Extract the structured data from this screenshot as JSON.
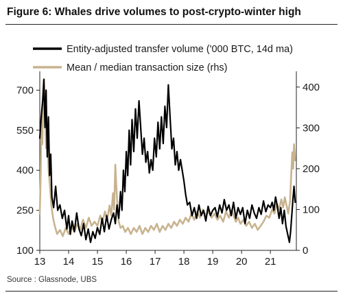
{
  "page": {
    "title": "Figure 6: Whales drive volumes to post-crypto-winter high",
    "source": "Source : Glassnode, UBS"
  },
  "chart_data": {
    "type": "line",
    "title": "Figure 6: Whales drive volumes to post-crypto-winter high",
    "x_range": [
      2013.0,
      2021.9
    ],
    "x_ticks": [
      "13",
      "14",
      "15",
      "16",
      "17",
      "18",
      "19",
      "20",
      "21"
    ],
    "x_tick_values": [
      2013,
      2014,
      2015,
      2016,
      2017,
      2018,
      2019,
      2020,
      2021
    ],
    "y_left": {
      "range": [
        100,
        750
      ],
      "ticks": [
        100,
        250,
        400,
        550,
        700
      ]
    },
    "y_right": {
      "range": [
        0,
        425
      ],
      "ticks": [
        0,
        100,
        200,
        300,
        400
      ],
      "label": "rhs"
    },
    "grid": false,
    "legend_position": "top",
    "series": [
      {
        "name": "Entity-adjusted transfer volume ('000 BTC, 14d ma)",
        "axis": "left",
        "color": "#000000",
        "points": [
          [
            2013.0,
            520
          ],
          [
            2013.05,
            600
          ],
          [
            2013.1,
            660
          ],
          [
            2013.14,
            740
          ],
          [
            2013.18,
            560
          ],
          [
            2013.22,
            700
          ],
          [
            2013.26,
            450
          ],
          [
            2013.3,
            600
          ],
          [
            2013.34,
            380
          ],
          [
            2013.38,
            460
          ],
          [
            2013.42,
            300
          ],
          [
            2013.48,
            260
          ],
          [
            2013.55,
            340
          ],
          [
            2013.62,
            250
          ],
          [
            2013.7,
            270
          ],
          [
            2013.78,
            220
          ],
          [
            2013.86,
            250
          ],
          [
            2013.94,
            180
          ],
          [
            2014.0,
            230
          ],
          [
            2014.06,
            160
          ],
          [
            2014.12,
            210
          ],
          [
            2014.2,
            170
          ],
          [
            2014.28,
            240
          ],
          [
            2014.36,
            180
          ],
          [
            2014.44,
            155
          ],
          [
            2014.52,
            200
          ],
          [
            2014.6,
            140
          ],
          [
            2014.68,
            180
          ],
          [
            2014.76,
            130
          ],
          [
            2014.84,
            170
          ],
          [
            2014.92,
            145
          ],
          [
            2015.0,
            185
          ],
          [
            2015.08,
            160
          ],
          [
            2015.16,
            220
          ],
          [
            2015.24,
            170
          ],
          [
            2015.32,
            230
          ],
          [
            2015.4,
            180
          ],
          [
            2015.48,
            215
          ],
          [
            2015.56,
            240
          ],
          [
            2015.62,
            200
          ],
          [
            2015.68,
            270
          ],
          [
            2015.74,
            220
          ],
          [
            2015.8,
            320
          ],
          [
            2015.85,
            250
          ],
          [
            2015.9,
            400
          ],
          [
            2015.95,
            320
          ],
          [
            2016.0,
            470
          ],
          [
            2016.05,
            380
          ],
          [
            2016.1,
            550
          ],
          [
            2016.15,
            420
          ],
          [
            2016.2,
            590
          ],
          [
            2016.26,
            470
          ],
          [
            2016.32,
            630
          ],
          [
            2016.38,
            520
          ],
          [
            2016.44,
            660
          ],
          [
            2016.5,
            560
          ],
          [
            2016.56,
            460
          ],
          [
            2016.62,
            520
          ],
          [
            2016.68,
            430
          ],
          [
            2016.74,
            470
          ],
          [
            2016.8,
            390
          ],
          [
            2016.86,
            440
          ],
          [
            2016.92,
            400
          ],
          [
            2016.98,
            520
          ],
          [
            2017.04,
            450
          ],
          [
            2017.1,
            580
          ],
          [
            2017.16,
            480
          ],
          [
            2017.22,
            600
          ],
          [
            2017.28,
            500
          ],
          [
            2017.34,
            640
          ],
          [
            2017.4,
            560
          ],
          [
            2017.46,
            720
          ],
          [
            2017.52,
            600
          ],
          [
            2017.58,
            480
          ],
          [
            2017.64,
            520
          ],
          [
            2017.7,
            420
          ],
          [
            2017.76,
            470
          ],
          [
            2017.82,
            400
          ],
          [
            2017.88,
            440
          ],
          [
            2017.94,
            400
          ],
          [
            2018.0,
            360
          ],
          [
            2018.06,
            310
          ],
          [
            2018.12,
            270
          ],
          [
            2018.2,
            280
          ],
          [
            2018.28,
            230
          ],
          [
            2018.36,
            260
          ],
          [
            2018.44,
            220
          ],
          [
            2018.52,
            270
          ],
          [
            2018.6,
            230
          ],
          [
            2018.68,
            250
          ],
          [
            2018.76,
            210
          ],
          [
            2018.84,
            265
          ],
          [
            2018.92,
            230
          ],
          [
            2019.0,
            250
          ],
          [
            2019.08,
            260
          ],
          [
            2019.16,
            225
          ],
          [
            2019.24,
            270
          ],
          [
            2019.32,
            240
          ],
          [
            2019.4,
            290
          ],
          [
            2019.48,
            250
          ],
          [
            2019.56,
            270
          ],
          [
            2019.64,
            230
          ],
          [
            2019.72,
            280
          ],
          [
            2019.8,
            220
          ],
          [
            2019.88,
            260
          ],
          [
            2019.96,
            235
          ],
          [
            2020.04,
            260
          ],
          [
            2020.12,
            200
          ],
          [
            2020.2,
            250
          ],
          [
            2020.28,
            220
          ],
          [
            2020.36,
            270
          ],
          [
            2020.44,
            240
          ],
          [
            2020.52,
            220
          ],
          [
            2020.6,
            260
          ],
          [
            2020.68,
            235
          ],
          [
            2020.76,
            285
          ],
          [
            2020.84,
            245
          ],
          [
            2020.92,
            270
          ],
          [
            2021.0,
            260
          ],
          [
            2021.06,
            280
          ],
          [
            2021.12,
            250
          ],
          [
            2021.18,
            300
          ],
          [
            2021.24,
            265
          ],
          [
            2021.3,
            220
          ],
          [
            2021.36,
            260
          ],
          [
            2021.42,
            200
          ],
          [
            2021.48,
            250
          ],
          [
            2021.54,
            190
          ],
          [
            2021.6,
            160
          ],
          [
            2021.66,
            130
          ],
          [
            2021.7,
            170
          ],
          [
            2021.74,
            230
          ],
          [
            2021.78,
            290
          ],
          [
            2021.82,
            340
          ],
          [
            2021.86,
            280
          ]
        ]
      },
      {
        "name": "Mean / median transaction size (rhs)",
        "axis": "right",
        "color": "#c8b38f",
        "points": [
          [
            2013.0,
            90
          ],
          [
            2013.03,
            180
          ],
          [
            2013.06,
            330
          ],
          [
            2013.09,
            260
          ],
          [
            2013.12,
            380
          ],
          [
            2013.15,
            420
          ],
          [
            2013.18,
            340
          ],
          [
            2013.22,
            250
          ],
          [
            2013.26,
            300
          ],
          [
            2013.3,
            200
          ],
          [
            2013.35,
            160
          ],
          [
            2013.4,
            110
          ],
          [
            2013.46,
            80
          ],
          [
            2013.52,
            60
          ],
          [
            2013.6,
            40
          ],
          [
            2013.7,
            50
          ],
          [
            2013.8,
            35
          ],
          [
            2013.9,
            55
          ],
          [
            2014.0,
            40
          ],
          [
            2014.1,
            60
          ],
          [
            2014.2,
            45
          ],
          [
            2014.3,
            65
          ],
          [
            2014.4,
            50
          ],
          [
            2014.5,
            75
          ],
          [
            2014.6,
            55
          ],
          [
            2014.7,
            80
          ],
          [
            2014.8,
            60
          ],
          [
            2014.9,
            70
          ],
          [
            2015.0,
            60
          ],
          [
            2015.1,
            85
          ],
          [
            2015.18,
            70
          ],
          [
            2015.26,
            95
          ],
          [
            2015.34,
            75
          ],
          [
            2015.42,
            110
          ],
          [
            2015.48,
            85
          ],
          [
            2015.54,
            140
          ],
          [
            2015.58,
            100
          ],
          [
            2015.62,
            210
          ],
          [
            2015.66,
            150
          ],
          [
            2015.7,
            100
          ],
          [
            2015.74,
            70
          ],
          [
            2015.8,
            55
          ],
          [
            2015.88,
            60
          ],
          [
            2015.96,
            45
          ],
          [
            2016.06,
            55
          ],
          [
            2016.16,
            40
          ],
          [
            2016.26,
            55
          ],
          [
            2016.36,
            45
          ],
          [
            2016.46,
            60
          ],
          [
            2016.56,
            40
          ],
          [
            2016.66,
            55
          ],
          [
            2016.76,
            45
          ],
          [
            2016.86,
            60
          ],
          [
            2016.96,
            50
          ],
          [
            2017.06,
            65
          ],
          [
            2017.16,
            45
          ],
          [
            2017.26,
            60
          ],
          [
            2017.36,
            50
          ],
          [
            2017.46,
            65
          ],
          [
            2017.56,
            55
          ],
          [
            2017.66,
            70
          ],
          [
            2017.76,
            60
          ],
          [
            2017.86,
            75
          ],
          [
            2017.96,
            65
          ],
          [
            2018.06,
            80
          ],
          [
            2018.16,
            70
          ],
          [
            2018.26,
            90
          ],
          [
            2018.36,
            75
          ],
          [
            2018.46,
            95
          ],
          [
            2018.56,
            80
          ],
          [
            2018.66,
            100
          ],
          [
            2018.76,
            85
          ],
          [
            2018.86,
            95
          ],
          [
            2018.96,
            80
          ],
          [
            2019.06,
            90
          ],
          [
            2019.16,
            75
          ],
          [
            2019.26,
            85
          ],
          [
            2019.36,
            70
          ],
          [
            2019.46,
            95
          ],
          [
            2019.56,
            80
          ],
          [
            2019.66,
            100
          ],
          [
            2019.72,
            85
          ],
          [
            2019.8,
            70
          ],
          [
            2019.88,
            80
          ],
          [
            2019.96,
            65
          ],
          [
            2020.06,
            75
          ],
          [
            2020.16,
            60
          ],
          [
            2020.26,
            70
          ],
          [
            2020.36,
            55
          ],
          [
            2020.46,
            65
          ],
          [
            2020.56,
            50
          ],
          [
            2020.66,
            60
          ],
          [
            2020.76,
            70
          ],
          [
            2020.86,
            85
          ],
          [
            2020.96,
            80
          ],
          [
            2021.06,
            100
          ],
          [
            2021.14,
            90
          ],
          [
            2021.22,
            115
          ],
          [
            2021.3,
            100
          ],
          [
            2021.38,
            125
          ],
          [
            2021.44,
            105
          ],
          [
            2021.5,
            130
          ],
          [
            2021.56,
            110
          ],
          [
            2021.62,
            90
          ],
          [
            2021.68,
            120
          ],
          [
            2021.72,
            180
          ],
          [
            2021.76,
            240
          ],
          [
            2021.79,
            200
          ],
          [
            2021.82,
            260
          ],
          [
            2021.86,
            220
          ]
        ]
      }
    ]
  }
}
